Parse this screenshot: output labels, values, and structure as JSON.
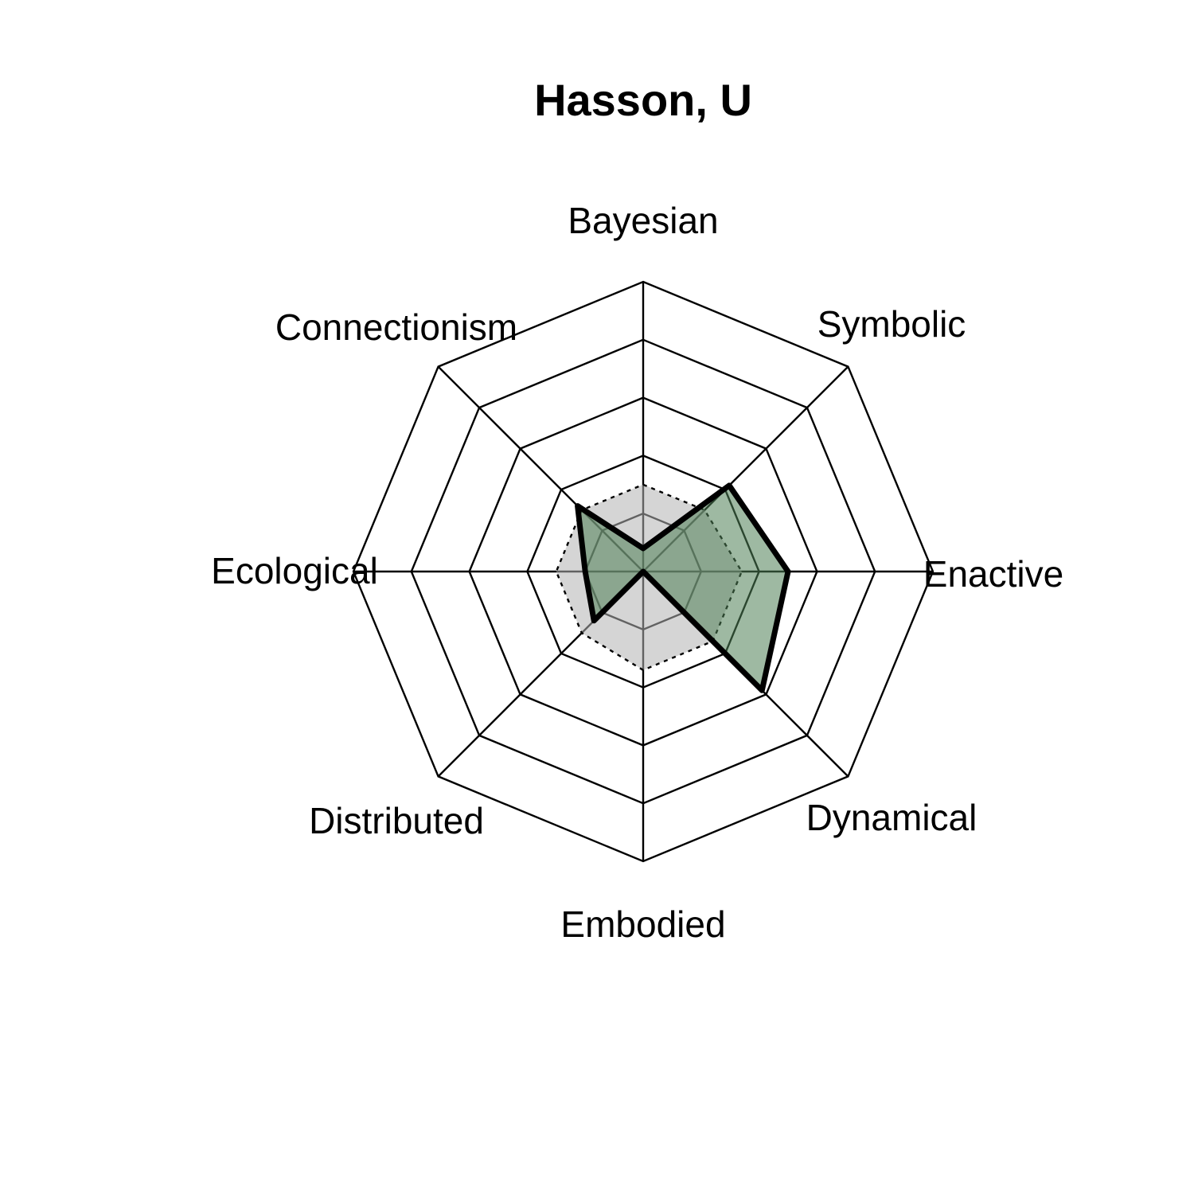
{
  "chart_data": {
    "type": "radar",
    "title": "Hasson, U",
    "axes": [
      "Bayesian",
      "Symbolic",
      "Enactive",
      "Dynamical",
      "Embodied",
      "Distributed",
      "Ecological",
      "Connectionism"
    ],
    "rlim": [
      0,
      5
    ],
    "grid_levels": 5,
    "series": [
      {
        "values": [
          0.4,
          2.1,
          2.5,
          2.9,
          0.0,
          1.2,
          1.0,
          1.6
        ],
        "fill": "#4f7f56",
        "fill_opacity": 0.55,
        "stroke": "#000000",
        "line": "solid"
      },
      {
        "values": [
          1.5,
          1.5,
          1.7,
          1.7,
          1.7,
          1.5,
          1.5,
          1.5
        ],
        "fill": "#b3b3b3",
        "fill_opacity": 0.55,
        "stroke": "#000000",
        "line": "dotted"
      }
    ]
  }
}
